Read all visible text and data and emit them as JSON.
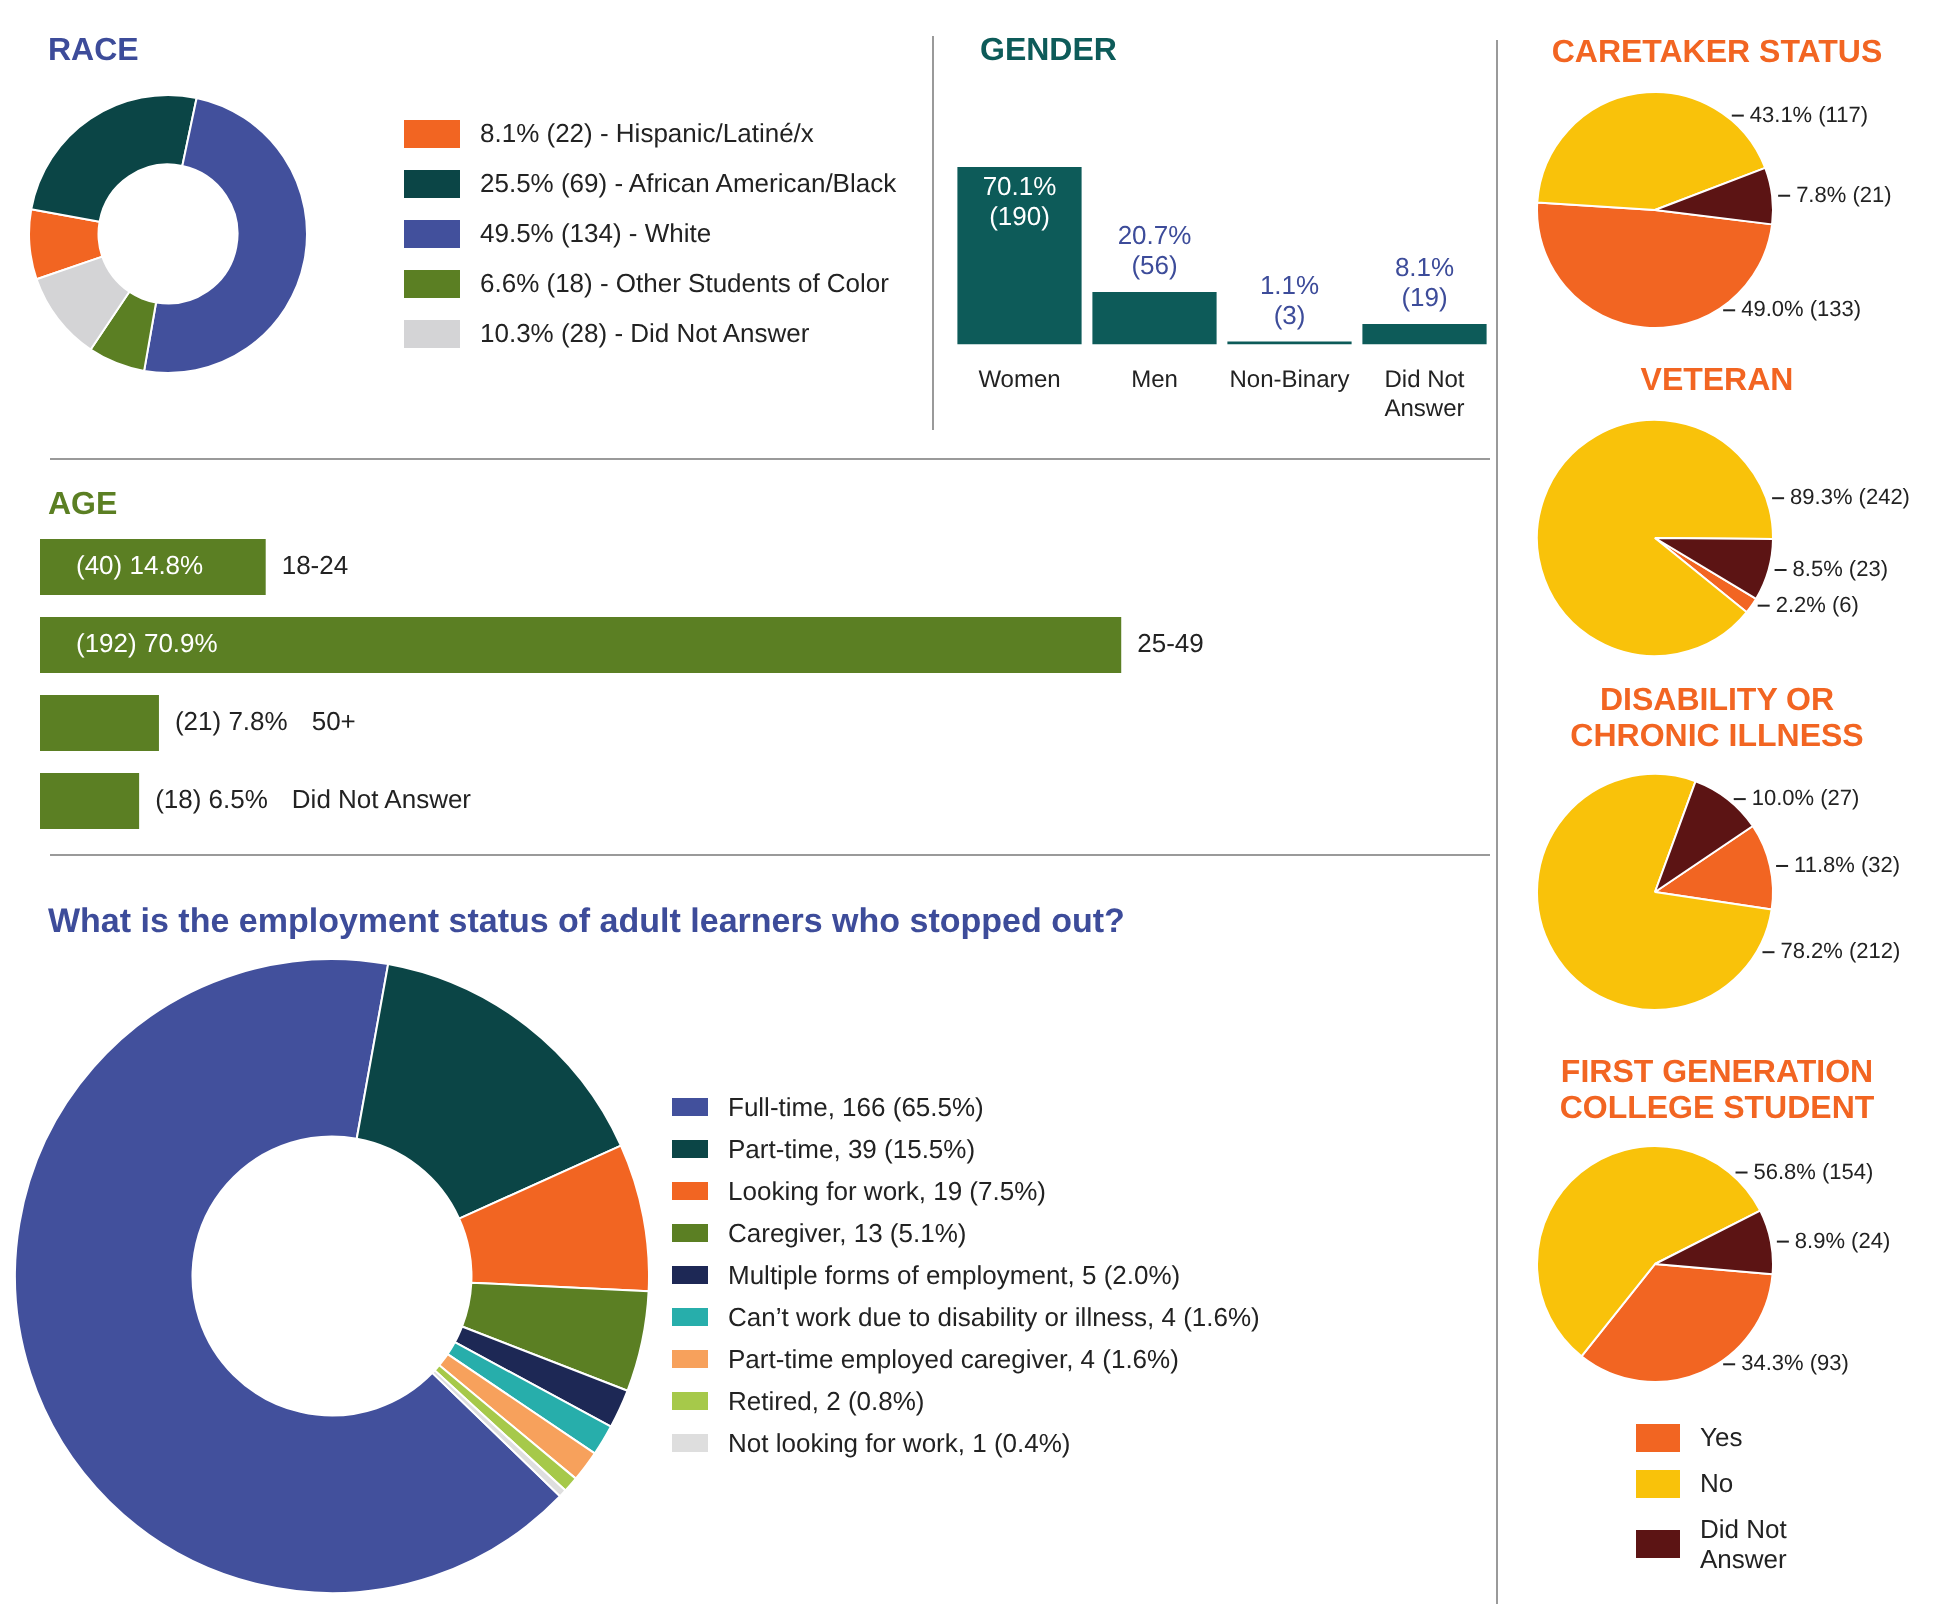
{
  "chart_data": [
    {
      "type": "donut",
      "title": "RACE",
      "categories": [
        "8.1% (22) - Hispanic/Latiné/x",
        "25.5% (69) - African American/Black",
        "49.5% (134) - White",
        "6.6% (18) - Other Students of Color",
        "10.3% (28) - Did Not Answer"
      ],
      "values": [
        22,
        69,
        134,
        18,
        28
      ],
      "colors": [
        "#f26522",
        "#0b4546",
        "#42509c",
        "#5b7f23",
        "#d4d4d6"
      ],
      "legend": "right"
    },
    {
      "type": "bar",
      "title": "GENDER",
      "categories": [
        "Women",
        "Men",
        "Non-Binary",
        "Did Not Answer"
      ],
      "values": [
        70.1,
        20.7,
        1.1,
        8.1
      ],
      "color": "#0d5b59",
      "value_labels": [
        "70.1% (190)",
        "20.7% (56)",
        "1.1% (3)",
        "8.1% (19)"
      ]
    },
    {
      "type": "bar",
      "title": "AGE",
      "orientation": "horizontal",
      "categories": [
        "18-24",
        "25-49",
        "50+",
        "Did Not Answer"
      ],
      "values": [
        14.8,
        70.9,
        7.8,
        6.5
      ],
      "color": "#5b7f23",
      "value_labels": [
        "(40) 14.8%",
        "(192) 70.9%",
        "(21) 7.8%",
        "(18) 6.5%"
      ]
    },
    {
      "type": "donut",
      "title": "What is the employment status of adult learners who stopped out?",
      "categories": [
        "Full-time, 166 (65.5%)",
        "Part-time, 39 (15.5%)",
        "Looking for work, 19 (7.5%)",
        "Caregiver, 13 (5.1%)",
        "Multiple forms of employment, 5 (2.0%)",
        "Can’t work due to disability or illness, 4 (1.6%)",
        "Part-time employed caregiver, 4 (1.6%)",
        "Retired, 2 (0.8%)",
        "Not looking for work, 1 (0.4%)"
      ],
      "values": [
        166,
        39,
        19,
        13,
        5,
        4,
        4,
        2,
        1
      ],
      "colors": [
        "#42509c",
        "#0b4546",
        "#f26522",
        "#5b7f23",
        "#1d2855",
        "#27aeab",
        "#f7a15c",
        "#a6c94a",
        "#dedede"
      ],
      "legend": "right"
    },
    {
      "type": "pie",
      "title": "CARETAKER STATUS",
      "categories": [
        null,
        null,
        null
      ],
      "values": [
        133,
        117,
        21
      ],
      "colors": [
        "#f26522",
        "#f9c20a",
        "#5c1414"
      ],
      "value_labels": [
        "49.0% (133)",
        "43.1% (117)",
        "7.8% (21)"
      ]
    },
    {
      "type": "pie",
      "title": "VETERAN",
      "categories": [
        null,
        null,
        null
      ],
      "values": [
        6,
        242,
        23
      ],
      "colors": [
        "#f26522",
        "#f9c20a",
        "#5c1414"
      ],
      "value_labels": [
        "2.2% (6)",
        "89.3% (242)",
        "8.5% (23)"
      ]
    },
    {
      "type": "pie",
      "title": "DISABILITY OR CHRONIC ILLNESS",
      "categories": [
        null,
        null,
        null
      ],
      "values": [
        32,
        212,
        27
      ],
      "colors": [
        "#f26522",
        "#f9c20a",
        "#5c1414"
      ],
      "value_labels": [
        "11.8% (32)",
        "78.2% (212)",
        "10.0% (27)"
      ]
    },
    {
      "type": "pie",
      "title": "FIRST GENERATION COLLEGE STUDENT",
      "categories": [
        "Yes",
        "No",
        "Did Not Answer"
      ],
      "values": [
        93,
        154,
        24
      ],
      "colors": [
        "#f26522",
        "#f9c20a",
        "#5c1414"
      ],
      "value_labels": [
        "34.3% (93)",
        "56.8% (154)",
        "8.9% (24)"
      ],
      "legend": "bottom"
    }
  ]
}
